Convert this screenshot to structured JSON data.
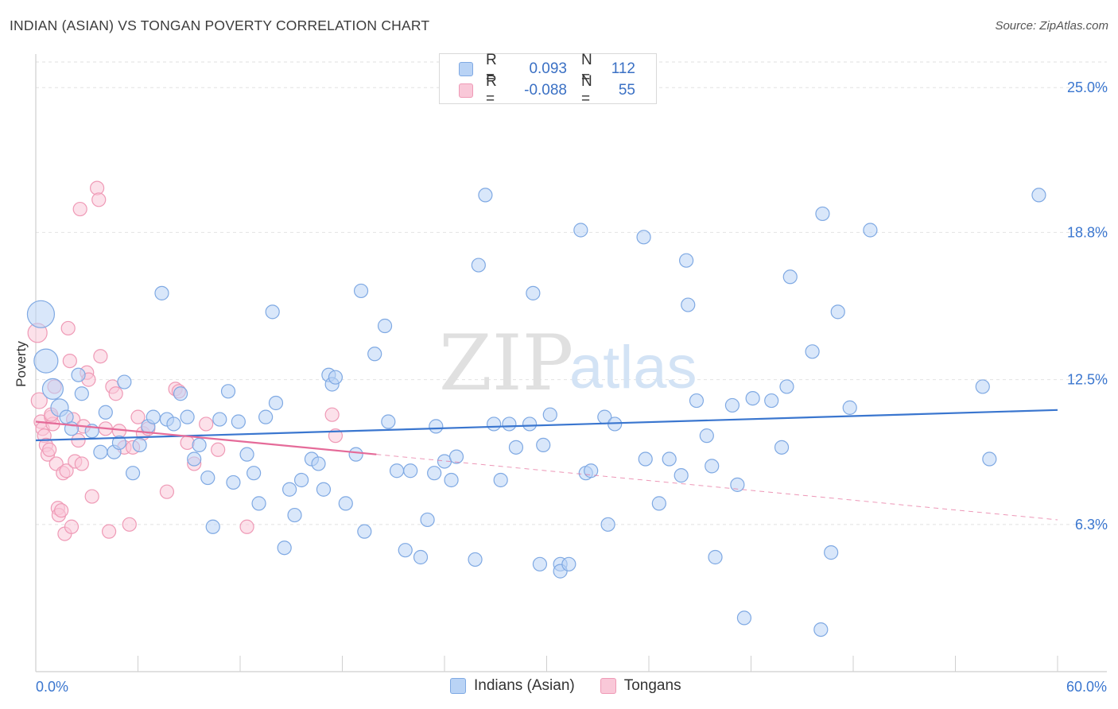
{
  "title": "INDIAN (ASIAN) VS TONGAN POVERTY CORRELATION CHART",
  "source": "Source: ZipAtlas.com",
  "watermark": {
    "zip": "ZIP",
    "atlas": "atlas"
  },
  "legend": {
    "rows": [
      {
        "r_label": "R =",
        "r_value": "0.093",
        "n_label": "N =",
        "n_value": "112",
        "fill": "#b9d3f5",
        "stroke": "#7fa9e3"
      },
      {
        "r_label": "R =",
        "r_value": "-0.088",
        "n_label": "N =",
        "n_value": "55",
        "fill": "#f9c8d8",
        "stroke": "#ef9ab6"
      }
    ]
  },
  "chart_data": {
    "type": "scatter",
    "title": "INDIAN (ASIAN) VS TONGAN POVERTY CORRELATION CHART",
    "xlabel": "",
    "ylabel": "Poverty",
    "xlim": [
      0,
      60
    ],
    "ylim": [
      0,
      26.3
    ],
    "x_tick_labels": [
      "0.0%",
      "60.0%"
    ],
    "y_ticks": [
      6.3,
      12.5,
      18.8,
      25.0
    ],
    "y_tick_labels": [
      "6.3%",
      "12.5%",
      "18.8%",
      "25.0%"
    ],
    "grid": "horizontal dashed",
    "legend_position": "bottom-center",
    "series": [
      {
        "name": "Indians (Asian)",
        "color": "#7fa9e3",
        "fill": "#b9d3f5",
        "trend": {
          "x": [
            0,
            60
          ],
          "y": [
            9.9,
            11.2
          ],
          "color": "#3a76cf"
        },
        "points": [
          [
            0.3,
            15.3
          ],
          [
            0.6,
            13.3
          ],
          [
            1.0,
            12.1
          ],
          [
            1.4,
            11.3
          ],
          [
            1.8,
            10.9
          ],
          [
            2.1,
            10.4
          ],
          [
            2.5,
            12.7
          ],
          [
            2.7,
            11.9
          ],
          [
            3.3,
            10.3
          ],
          [
            3.8,
            9.4
          ],
          [
            4.1,
            11.1
          ],
          [
            4.6,
            9.4
          ],
          [
            4.9,
            9.8
          ],
          [
            5.2,
            12.4
          ],
          [
            5.7,
            8.5
          ],
          [
            6.1,
            9.7
          ],
          [
            6.6,
            10.5
          ],
          [
            6.9,
            10.9
          ],
          [
            7.4,
            16.2
          ],
          [
            7.7,
            10.8
          ],
          [
            8.1,
            10.6
          ],
          [
            8.5,
            11.9
          ],
          [
            8.9,
            10.9
          ],
          [
            9.3,
            9.1
          ],
          [
            9.6,
            9.7
          ],
          [
            10.1,
            8.3
          ],
          [
            10.4,
            6.2
          ],
          [
            10.8,
            10.8
          ],
          [
            11.3,
            12.0
          ],
          [
            11.6,
            8.1
          ],
          [
            11.9,
            10.7
          ],
          [
            12.4,
            9.3
          ],
          [
            12.8,
            8.5
          ],
          [
            13.1,
            7.2
          ],
          [
            13.5,
            10.9
          ],
          [
            13.9,
            15.4
          ],
          [
            14.1,
            11.5
          ],
          [
            14.6,
            5.3
          ],
          [
            14.9,
            7.8
          ],
          [
            15.2,
            6.7
          ],
          [
            15.6,
            8.2
          ],
          [
            16.2,
            9.1
          ],
          [
            16.6,
            8.9
          ],
          [
            16.9,
            7.8
          ],
          [
            17.2,
            12.7
          ],
          [
            17.4,
            12.3
          ],
          [
            17.6,
            12.6
          ],
          [
            18.2,
            7.2
          ],
          [
            18.8,
            9.3
          ],
          [
            19.1,
            16.3
          ],
          [
            19.3,
            6.0
          ],
          [
            19.9,
            13.6
          ],
          [
            20.5,
            14.8
          ],
          [
            20.7,
            10.7
          ],
          [
            21.2,
            8.6
          ],
          [
            21.7,
            5.2
          ],
          [
            22.0,
            8.6
          ],
          [
            22.6,
            4.9
          ],
          [
            23.0,
            6.5
          ],
          [
            23.4,
            8.5
          ],
          [
            23.5,
            10.5
          ],
          [
            24.0,
            9.0
          ],
          [
            24.4,
            8.2
          ],
          [
            24.7,
            9.2
          ],
          [
            25.8,
            4.8
          ],
          [
            26.0,
            17.4
          ],
          [
            26.4,
            20.4
          ],
          [
            26.9,
            10.6
          ],
          [
            27.3,
            8.2
          ],
          [
            27.8,
            10.6
          ],
          [
            28.2,
            9.6
          ],
          [
            29.0,
            10.6
          ],
          [
            29.2,
            16.2
          ],
          [
            29.6,
            4.6
          ],
          [
            29.8,
            9.7
          ],
          [
            30.2,
            11.0
          ],
          [
            30.8,
            4.6
          ],
          [
            30.8,
            4.3
          ],
          [
            31.3,
            4.6
          ],
          [
            32.0,
            18.9
          ],
          [
            32.3,
            8.5
          ],
          [
            32.6,
            8.6
          ],
          [
            33.4,
            10.9
          ],
          [
            33.6,
            6.3
          ],
          [
            34.0,
            10.6
          ],
          [
            35.7,
            18.6
          ],
          [
            35.8,
            9.1
          ],
          [
            36.6,
            7.2
          ],
          [
            37.2,
            9.1
          ],
          [
            37.9,
            8.4
          ],
          [
            38.2,
            17.6
          ],
          [
            38.3,
            15.7
          ],
          [
            38.8,
            11.6
          ],
          [
            39.4,
            10.1
          ],
          [
            39.7,
            8.8
          ],
          [
            39.9,
            4.9
          ],
          [
            40.9,
            11.4
          ],
          [
            41.2,
            8.0
          ],
          [
            41.6,
            2.3
          ],
          [
            42.1,
            11.7
          ],
          [
            43.2,
            11.6
          ],
          [
            43.8,
            9.6
          ],
          [
            44.1,
            12.2
          ],
          [
            44.3,
            16.9
          ],
          [
            45.6,
            13.7
          ],
          [
            46.1,
            1.8
          ],
          [
            46.2,
            19.6
          ],
          [
            46.7,
            5.1
          ],
          [
            47.1,
            15.4
          ],
          [
            47.8,
            11.3
          ],
          [
            49.0,
            18.9
          ],
          [
            55.6,
            12.2
          ],
          [
            56.0,
            9.1
          ],
          [
            58.9,
            20.4
          ]
        ]
      },
      {
        "name": "Tongans",
        "color": "#ef9ab6",
        "fill": "#f9c8d8",
        "trend": {
          "x": [
            0,
            20
          ],
          "y": [
            10.7,
            9.3
          ],
          "dashed_to": [
            60,
            6.5
          ],
          "color": "#e56b99"
        },
        "points": [
          [
            0.1,
            14.5
          ],
          [
            0.2,
            11.6
          ],
          [
            0.3,
            10.7
          ],
          [
            0.4,
            10.4
          ],
          [
            0.5,
            10.1
          ],
          [
            0.6,
            9.7
          ],
          [
            0.7,
            9.3
          ],
          [
            0.8,
            9.5
          ],
          [
            0.9,
            10.9
          ],
          [
            1.0,
            10.6
          ],
          [
            1.1,
            12.2
          ],
          [
            1.2,
            8.9
          ],
          [
            1.3,
            7.0
          ],
          [
            1.35,
            6.7
          ],
          [
            1.5,
            6.9
          ],
          [
            1.6,
            8.5
          ],
          [
            1.7,
            5.9
          ],
          [
            1.8,
            8.6
          ],
          [
            1.9,
            14.7
          ],
          [
            2.0,
            13.3
          ],
          [
            2.1,
            6.2
          ],
          [
            2.2,
            10.8
          ],
          [
            2.3,
            9.0
          ],
          [
            2.5,
            9.9
          ],
          [
            2.6,
            19.8
          ],
          [
            2.7,
            8.9
          ],
          [
            2.8,
            10.5
          ],
          [
            3.0,
            12.8
          ],
          [
            3.1,
            12.5
          ],
          [
            3.3,
            7.5
          ],
          [
            3.6,
            20.7
          ],
          [
            3.7,
            20.2
          ],
          [
            3.8,
            13.5
          ],
          [
            4.1,
            10.4
          ],
          [
            4.3,
            6.0
          ],
          [
            4.5,
            12.2
          ],
          [
            4.7,
            11.9
          ],
          [
            4.9,
            10.3
          ],
          [
            5.2,
            9.6
          ],
          [
            5.5,
            6.3
          ],
          [
            5.7,
            9.6
          ],
          [
            6.0,
            10.9
          ],
          [
            6.3,
            10.2
          ],
          [
            6.6,
            10.4
          ],
          [
            7.7,
            7.7
          ],
          [
            8.2,
            12.1
          ],
          [
            8.4,
            12.0
          ],
          [
            8.9,
            9.8
          ],
          [
            9.3,
            8.9
          ],
          [
            10.0,
            10.6
          ],
          [
            10.7,
            9.5
          ],
          [
            12.4,
            6.2
          ],
          [
            17.4,
            11.0
          ],
          [
            17.6,
            10.1
          ],
          [
            0.9,
            11.0
          ]
        ]
      }
    ]
  },
  "bottom_legend": [
    {
      "label": "Indians (Asian)",
      "fill": "#b9d3f5",
      "stroke": "#7fa9e3"
    },
    {
      "label": "Tongans",
      "fill": "#f9c8d8",
      "stroke": "#ef9ab6"
    }
  ]
}
